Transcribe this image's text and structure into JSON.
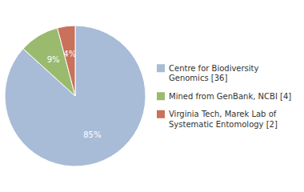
{
  "chart_data": {
    "type": "pie",
    "categories": [
      "Centre for Biodiversity\nGenomics [36]",
      "Mined from GenBank, NCBI [4]",
      "Virginia Tech, Marek Lab of\nSystematic Entomology [2]"
    ],
    "values": [
      85,
      9,
      4
    ],
    "value_labels": [
      "85%",
      "9%",
      "4%"
    ],
    "colors": [
      "#a8bcd8",
      "#9abb6e",
      "#c9715a"
    ],
    "data_labels": true,
    "legend": "right"
  }
}
